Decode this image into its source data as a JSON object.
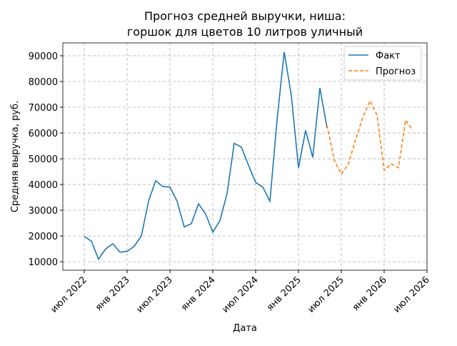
{
  "chart_data": {
    "type": "line",
    "title": "Прогноз средней выручки, ниша:\nгоршок для цветов 10 литров уличный",
    "xlabel": "Дата",
    "ylabel": "Средняя выручка, руб.",
    "series": [
      {
        "name": "Факт",
        "color": "#1f77b4",
        "dash": false,
        "x": [
          "2022-07",
          "2022-08",
          "2022-09",
          "2022-10",
          "2022-11",
          "2022-12",
          "2023-01",
          "2023-02",
          "2023-03",
          "2023-04",
          "2023-05",
          "2023-06",
          "2023-07",
          "2023-08",
          "2023-09",
          "2023-10",
          "2023-11",
          "2023-12",
          "2024-01",
          "2024-02",
          "2024-03",
          "2024-04",
          "2024-05",
          "2024-06",
          "2024-07",
          "2024-08",
          "2024-09",
          "2024-10",
          "2024-11",
          "2024-12",
          "2025-01",
          "2025-02",
          "2025-03",
          "2025-04",
          "2025-05"
        ],
        "values": [
          19800,
          18000,
          11000,
          15000,
          17000,
          13700,
          14000,
          16000,
          20000,
          33500,
          41500,
          39200,
          39000,
          33500,
          23500,
          24800,
          32500,
          28500,
          21500,
          26000,
          36500,
          56000,
          54500,
          47500,
          40800,
          39000,
          33500,
          65000,
          91500,
          74500,
          46500,
          61000,
          50500,
          77500,
          62000
        ]
      },
      {
        "name": "Прогноз",
        "color": "#ff7f0e",
        "dash": true,
        "x": [
          "2025-05",
          "2025-06",
          "2025-07",
          "2025-08",
          "2025-09",
          "2025-10",
          "2025-11",
          "2025-12",
          "2026-01",
          "2026-02",
          "2026-03",
          "2026-04",
          "2026-05"
        ],
        "values": [
          63000,
          49500,
          44000,
          48000,
          57500,
          66000,
          72500,
          67000,
          45500,
          48000,
          46500,
          65000,
          61000
        ]
      }
    ],
    "xlim": [
      "2022-04",
      "2026-07"
    ],
    "xticks": [
      {
        "value": "2022-07",
        "label": "июл 2022"
      },
      {
        "value": "2023-01",
        "label": "янв 2023"
      },
      {
        "value": "2023-07",
        "label": "июл 2023"
      },
      {
        "value": "2024-01",
        "label": "янв 2024"
      },
      {
        "value": "2024-07",
        "label": "июл 2024"
      },
      {
        "value": "2025-01",
        "label": "янв 2025"
      },
      {
        "value": "2025-07",
        "label": "июл 2025"
      },
      {
        "value": "2026-01",
        "label": "янв 2026"
      },
      {
        "value": "2026-07",
        "label": "июл 2026"
      }
    ],
    "ylim": [
      6700,
      95000
    ],
    "yticks": [
      10000,
      20000,
      30000,
      40000,
      50000,
      60000,
      70000,
      80000,
      90000
    ],
    "grid": true,
    "legend": "upper right"
  }
}
